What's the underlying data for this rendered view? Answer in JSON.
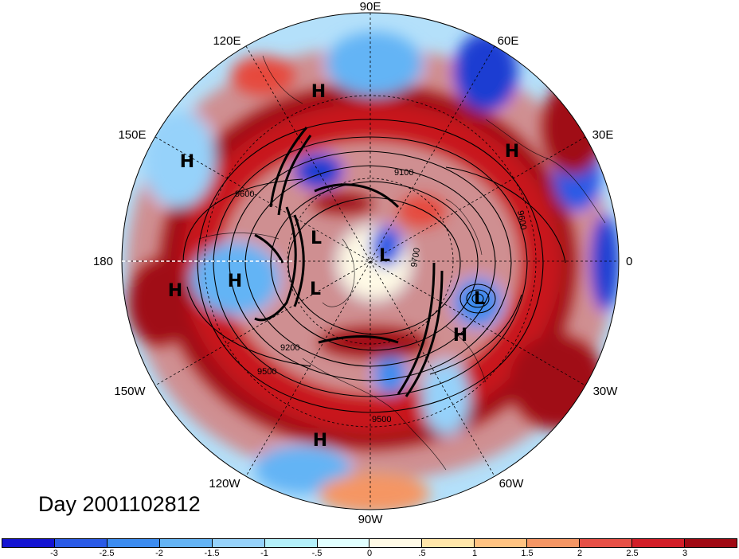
{
  "day_label": "Day 2001102812",
  "longitude_labels": {
    "lon_90e": "90E",
    "lon_60e": "60E",
    "lon_30e": "30E",
    "lon_0": "0",
    "lon_30w": "30W",
    "lon_60w": "60W",
    "lon_90w": "90W",
    "lon_120w": "120W",
    "lon_150w": "150W",
    "lon_180": "180",
    "lon_150e": "150E",
    "lon_120e": "120E"
  },
  "pressure_centers": [
    {
      "label": "H",
      "name": "high-pressure-120e"
    },
    {
      "label": "H",
      "name": "high-pressure-150e"
    },
    {
      "label": "H",
      "name": "high-pressure-north-pacific"
    },
    {
      "label": "H",
      "name": "high-pressure-180"
    },
    {
      "label": "H",
      "name": "high-pressure-africa"
    },
    {
      "label": "H",
      "name": "high-pressure-north-atlantic"
    },
    {
      "label": "H",
      "name": "high-pressure-caribbean"
    },
    {
      "label": "L",
      "name": "low-pressure-siberia"
    },
    {
      "label": "L",
      "name": "low-pressure-arctic"
    },
    {
      "label": "L",
      "name": "low-pressure-alaska"
    },
    {
      "label": "L",
      "name": "low-pressure-atlantic"
    }
  ],
  "contour_labels": {
    "c9100": "9100",
    "c9600_a": "9600",
    "c9600_b": "9600",
    "c9700": "9700",
    "c9200": "9200",
    "c9500_a": "9500",
    "c9500_b": "9500"
  },
  "colorbar": {
    "colors": [
      "#1414d2",
      "#2a5ae6",
      "#3c8cf0",
      "#64b4f5",
      "#96d2fa",
      "#b4f0fa",
      "#e1ffff",
      "#fffae6",
      "#ffe6aa",
      "#ffc382",
      "#f59664",
      "#e65046",
      "#d21e28",
      "#a00a14"
    ],
    "ticks": [
      "-3",
      "-2.5",
      "-2",
      "-1.5",
      "-1",
      "-.5",
      "0",
      ".5",
      "1",
      "1.5",
      "2",
      "2.5",
      "3"
    ]
  }
}
